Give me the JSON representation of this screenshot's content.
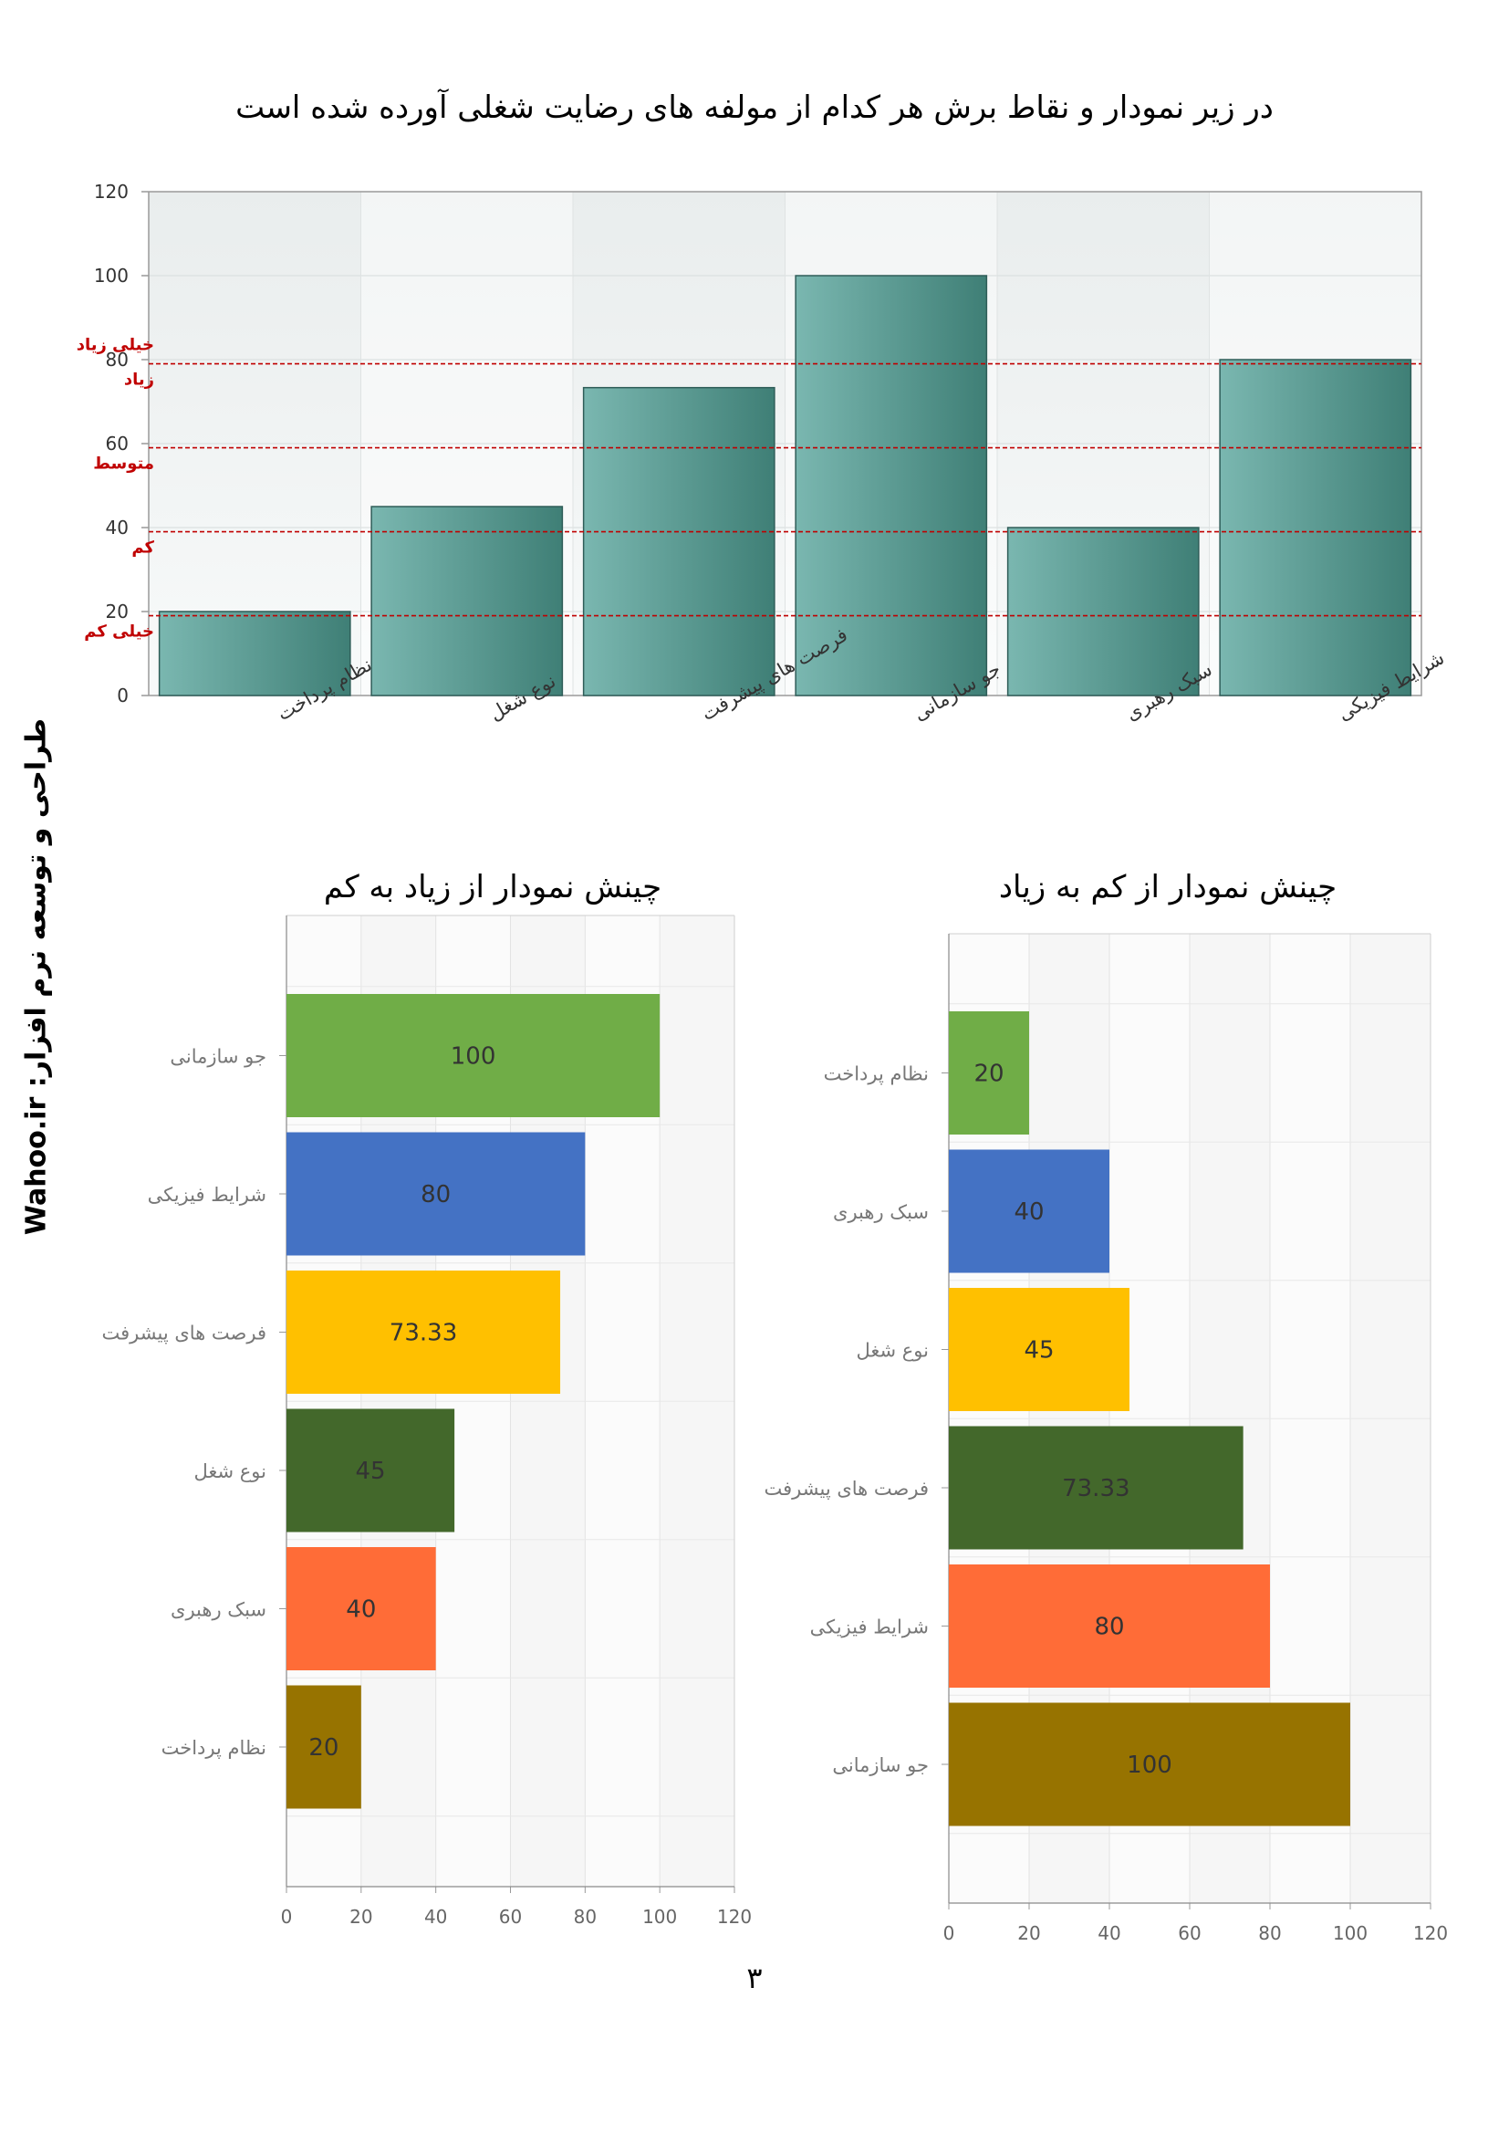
{
  "page": {
    "title": "در زیر نمودار و نقاط برش هر کدام از مولفه های رضایت شغلی آورده شده است",
    "side_credit": "طراحی و توسعه نرم افزار:  Wahoo.ir",
    "page_number": "۳"
  },
  "colors": {
    "teal_bar_light": "#7ab7b0",
    "teal_bar_dark": "#3f7f76",
    "cut_line": "#c00000",
    "sort_palette": [
      "#70ad47",
      "#4472c4",
      "#ffc000",
      "#43682b",
      "#ff6c37",
      "#977300"
    ]
  },
  "chart_data": [
    {
      "type": "bar",
      "categories": [
        "نظام پرداخت",
        "نوع شغل",
        "فرصت های پیشرفت",
        "جو سازمانی",
        "سبک رهبری",
        "شرایط فیزیکی"
      ],
      "values": [
        20,
        45,
        73.33,
        100,
        40,
        80
      ],
      "ylim": [
        0,
        120
      ],
      "yticks": [
        0,
        20,
        40,
        60,
        80,
        100,
        120
      ],
      "grid": true,
      "reference_lines": [
        {
          "value": 79,
          "labels": [
            "خیلی زیاد",
            "زیاد"
          ]
        },
        {
          "value": 59,
          "labels": [
            "متوسط"
          ]
        },
        {
          "value": 39,
          "labels": [
            "کم"
          ]
        },
        {
          "value": 19,
          "labels": [
            "خیلی کم"
          ]
        }
      ]
    },
    {
      "type": "bar",
      "orientation": "horizontal",
      "title": "چینش نمودار از زیاد به کم",
      "categories": [
        "جو سازمانی",
        "شرایط فیزیکی",
        "فرصت های پیشرفت",
        "نوع شغل",
        "سبک رهبری",
        "نظام پرداخت"
      ],
      "values": [
        100,
        80,
        73.33,
        45,
        40,
        20
      ],
      "data_labels": [
        "100",
        "80",
        "73.33",
        "45",
        "40",
        "20"
      ],
      "xlim": [
        0,
        120
      ],
      "xticks": [
        0,
        20,
        40,
        60,
        80,
        100,
        120
      ],
      "grid": true
    },
    {
      "type": "bar",
      "orientation": "horizontal",
      "title": "چینش نمودار از کم به زیاد",
      "categories": [
        "نظام پرداخت",
        "سبک رهبری",
        "نوع شغل",
        "فرصت های پیشرفت",
        "شرایط فیزیکی",
        "جو سازمانی"
      ],
      "values": [
        20,
        40,
        45,
        73.33,
        80,
        100
      ],
      "data_labels": [
        "20",
        "40",
        "45",
        "73.33",
        "80",
        "100"
      ],
      "xlim": [
        0,
        120
      ],
      "xticks": [
        0,
        20,
        40,
        60,
        80,
        100,
        120
      ],
      "grid": true
    }
  ]
}
